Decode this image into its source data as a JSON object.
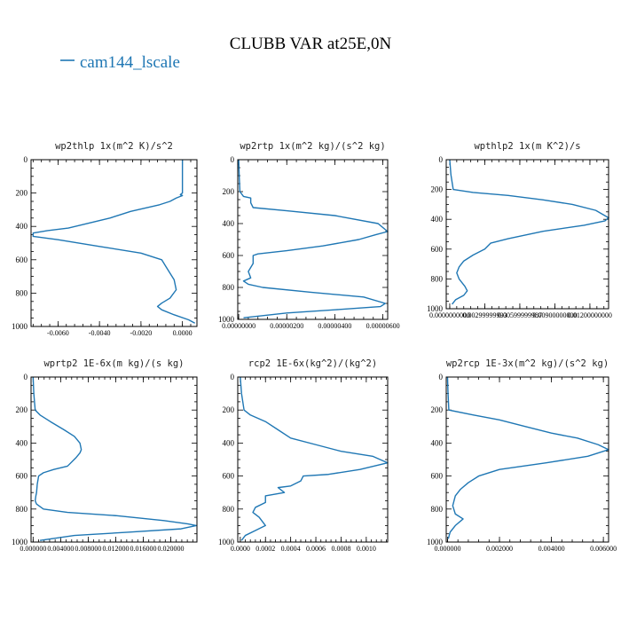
{
  "title": "CLUBB VAR at25E,0N",
  "legend": {
    "label": "cam144_lscale",
    "color": "#1f77b4"
  },
  "chart_data": [
    {
      "type": "line",
      "title": "wp2thlp  1x(m^2 K)/s^2",
      "ylim": [
        1000,
        0
      ],
      "yticks": [
        0,
        200,
        400,
        600,
        800,
        1000
      ],
      "yticklabels": [
        "0",
        "200",
        "400",
        "600",
        "800",
        "1000"
      ],
      "xlim": [
        -0.0073,
        0.0007
      ],
      "xticks": [
        -0.006,
        -0.004,
        -0.002,
        0.0
      ],
      "xticklabels": [
        "-0.0060",
        "-0.0040",
        "-0.0020",
        "0.0000"
      ],
      "series": [
        {
          "x": [
            0,
            0,
            0,
            0,
            0,
            -0.0001,
            0,
            -0.0001,
            -0.0003,
            -0.0006,
            -0.0011,
            -0.0018,
            -0.0025,
            -0.003,
            -0.0035,
            -0.0045,
            -0.0055,
            -0.0065,
            -0.0072,
            -0.0072,
            -0.006,
            -0.004,
            -0.002,
            -0.001,
            -0.0008,
            -0.0006,
            -0.0004,
            -0.0003,
            -0.0006,
            -0.001,
            -0.0012,
            -0.001,
            -0.0004,
            0.0003,
            0.0006
          ],
          "y": [
            0,
            100,
            180,
            190,
            200,
            210,
            215,
            220,
            230,
            250,
            270,
            290,
            310,
            330,
            350,
            380,
            410,
            425,
            440,
            460,
            480,
            520,
            560,
            600,
            640,
            680,
            720,
            780,
            830,
            860,
            880,
            900,
            930,
            960,
            980
          ]
        }
      ]
    },
    {
      "type": "line",
      "title": "wp2rtp  1x(m^2 kg)/(s^2 kg)",
      "ylim": [
        1000,
        0
      ],
      "yticks": [
        0,
        200,
        400,
        600,
        800,
        1000
      ],
      "yticklabels": [
        "0",
        "200",
        "400",
        "600",
        "800",
        "1000"
      ],
      "xlim": [
        -4e-08,
        6.2e-06
      ],
      "xticks": [
        0.0,
        2e-06,
        4e-06,
        6e-06
      ],
      "xticklabels": [
        "0.00000000",
        "0.00000200",
        "0.00000400",
        "0.00000600"
      ],
      "series": [
        {
          "x": [
            0,
            2e-08,
            5e-08,
            2e-07,
            5e-07,
            5e-07,
            6e-07,
            2e-06,
            4e-06,
            5.8e-06,
            6.2e-06,
            5.7e-06,
            5e-06,
            3.5e-06,
            2e-06,
            8e-07,
            6e-07,
            6e-07,
            4e-07,
            5e-07,
            2e-07,
            4e-07,
            1e-06,
            3e-06,
            5.2e-06,
            6.1e-06,
            5.9e-06,
            4e-06,
            2e-06,
            2e-07
          ],
          "y": [
            0,
            100,
            200,
            230,
            240,
            270,
            300,
            320,
            350,
            400,
            450,
            470,
            500,
            540,
            570,
            590,
            600,
            650,
            700,
            740,
            760,
            780,
            800,
            830,
            860,
            900,
            920,
            940,
            960,
            990
          ]
        }
      ]
    },
    {
      "type": "line",
      "title": "wpthlp2  1x(m K^2)/s",
      "ylim": [
        1000,
        0
      ],
      "yticks": [
        0,
        200,
        400,
        600,
        800,
        1000
      ],
      "yticklabels": [
        "0",
        "200",
        "400",
        "600",
        "800",
        "1000"
      ],
      "xlim": [
        -0.0003,
        0.0136
      ],
      "xticks": [
        0.0,
        0.003,
        0.006,
        0.009,
        0.012
      ],
      "xticklabels": [
        "0.0000000000",
        "0.00299999993",
        "0.00599999987",
        "0.00900000000",
        "0.01200000000"
      ],
      "series": [
        {
          "x": [
            0,
            0.0001,
            0.0003,
            0.002,
            0.005,
            0.008,
            0.0105,
            0.0125,
            0.0136,
            0.0133,
            0.0115,
            0.008,
            0.005,
            0.0035,
            0.003,
            0.002,
            0.0012,
            0.0008,
            0.0006,
            0.0008,
            0.0013,
            0.0015,
            0.0012,
            0.0005,
            0.0002
          ],
          "y": [
            0,
            100,
            200,
            220,
            240,
            270,
            300,
            340,
            390,
            410,
            440,
            480,
            530,
            560,
            600,
            640,
            680,
            720,
            760,
            800,
            850,
            880,
            910,
            940,
            970
          ]
        }
      ]
    },
    {
      "type": "line",
      "title": "wprtp2  1E-6x(m kg)/(s kg)",
      "ylim": [
        1000,
        0
      ],
      "yticks": [
        0,
        200,
        400,
        600,
        800,
        1000
      ],
      "yticklabels": [
        "0",
        "200",
        "400",
        "600",
        "800",
        "1000"
      ],
      "xlim": [
        -0.0003,
        0.0238
      ],
      "xticks": [
        0.0,
        0.004,
        0.008,
        0.012,
        0.016,
        0.02
      ],
      "xticklabels": [
        "0.000000",
        "0.004000",
        "0.008000",
        "0.012000",
        "0.016000",
        "0.020000"
      ],
      "series": [
        {
          "x": [
            0,
            0.0001,
            0.0003,
            0.001,
            0.0025,
            0.0045,
            0.006,
            0.0068,
            0.007,
            0.0068,
            0.0062,
            0.005,
            0.003,
            0.0015,
            0.0008,
            0.0006,
            0.0005,
            0.0004,
            0.0003,
            0.0005,
            0.0015,
            0.005,
            0.012,
            0.019,
            0.0225,
            0.0237,
            0.0215,
            0.014,
            0.006,
            0.001
          ],
          "y": [
            0,
            100,
            200,
            230,
            270,
            320,
            360,
            400,
            440,
            460,
            490,
            540,
            560,
            580,
            600,
            650,
            700,
            720,
            750,
            770,
            800,
            820,
            840,
            870,
            890,
            900,
            920,
            940,
            960,
            990
          ]
        }
      ]
    },
    {
      "type": "line",
      "title": "rcp2  1E-6x(kg^2)/(kg^2)",
      "ylim": [
        1000,
        0
      ],
      "yticks": [
        0,
        200,
        400,
        600,
        800,
        1000
      ],
      "yticklabels": [
        "0",
        "200",
        "400",
        "600",
        "800",
        "1000"
      ],
      "xlim": [
        -2e-05,
        0.00117
      ],
      "xticks": [
        0.0,
        0.0002,
        0.0004,
        0.0006,
        0.0008,
        0.001
      ],
      "xticklabels": [
        "0.0000",
        "0.0002",
        "0.0004",
        "0.0006",
        "0.0008",
        "0.0010"
      ],
      "series": [
        {
          "x": [
            0,
            1e-05,
            3e-05,
            8e-05,
            0.0002,
            0.0003,
            0.0004,
            0.0006,
            0.0008,
            0.00105,
            0.00117,
            0.00095,
            0.0007,
            0.0005,
            0.00048,
            0.0004,
            0.0003,
            0.00035,
            0.0002,
            0.0002,
            0.00012,
            0.0001,
            0.00015,
            0.0002,
            0.00012,
            4e-05,
            1e-05
          ],
          "y": [
            0,
            100,
            200,
            230,
            270,
            320,
            370,
            410,
            450,
            480,
            520,
            560,
            590,
            600,
            630,
            660,
            670,
            700,
            720,
            760,
            790,
            820,
            850,
            900,
            930,
            960,
            990
          ]
        }
      ]
    },
    {
      "type": "line",
      "title": "wp2rcp  1E-3x(m^2 kg)/(s^2 kg)",
      "ylim": [
        1000,
        0
      ],
      "yticks": [
        0,
        200,
        400,
        600,
        800,
        1000
      ],
      "yticklabels": [
        "0",
        "200",
        "400",
        "600",
        "800",
        "1000"
      ],
      "xlim": [
        -5e-05,
        0.0062
      ],
      "xticks": [
        0.0,
        0.002,
        0.004,
        0.006
      ],
      "xticklabels": [
        "0.000000",
        "0.002000",
        "0.004000",
        "0.006000"
      ],
      "series": [
        {
          "x": [
            0,
            2e-05,
            5e-05,
            0.001,
            0.002,
            0.003,
            0.004,
            0.005,
            0.0058,
            0.0062,
            0.0054,
            0.0038,
            0.002,
            0.0012,
            0.0008,
            0.0005,
            0.0003,
            0.0002,
            0.0003,
            0.0006,
            0.0003,
            0.0001,
            3e-05
          ],
          "y": [
            0,
            100,
            200,
            230,
            260,
            300,
            340,
            370,
            410,
            440,
            480,
            520,
            560,
            600,
            640,
            680,
            720,
            780,
            830,
            860,
            900,
            940,
            980
          ]
        }
      ]
    }
  ]
}
